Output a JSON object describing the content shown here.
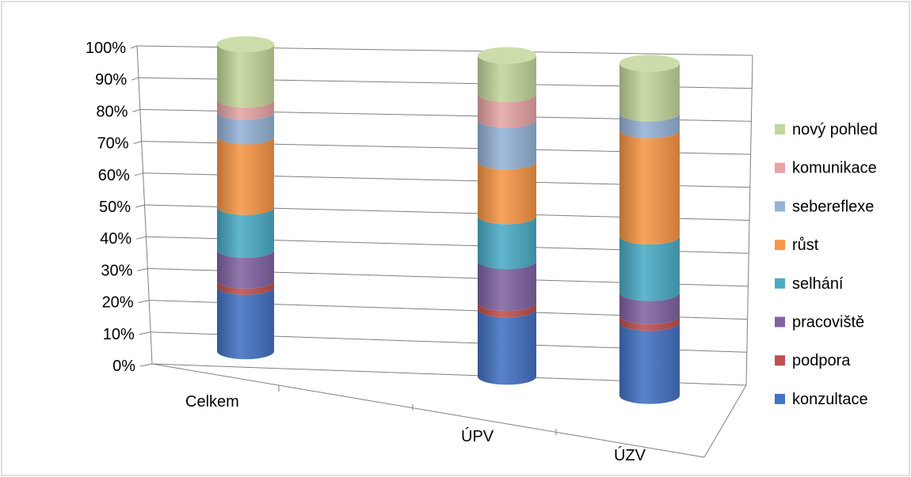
{
  "chart_data": {
    "type": "bar",
    "subtype": "3d-stacked-percent-cylinder",
    "title": "",
    "xlabel": "",
    "ylabel": "",
    "ylim": [
      0,
      100
    ],
    "yticks": [
      "0%",
      "10%",
      "20%",
      "30%",
      "40%",
      "50%",
      "60%",
      "70%",
      "80%",
      "90%",
      "100%"
    ],
    "categories": [
      "Celkem",
      "ÚPV",
      "ÚZV"
    ],
    "series": [
      {
        "name": "konzultace",
        "color": "#4472c4",
        "values": [
          21,
          21,
          22
        ]
      },
      {
        "name": "podpora",
        "color": "#c0504d",
        "values": [
          2,
          2,
          2
        ]
      },
      {
        "name": "pracoviště",
        "color": "#8064a2",
        "values": [
          10,
          13,
          7
        ]
      },
      {
        "name": "selhání",
        "color": "#4bacc6",
        "values": [
          14,
          14,
          17
        ]
      },
      {
        "name": "růst",
        "color": "#f79646",
        "values": [
          23,
          17,
          32
        ]
      },
      {
        "name": "sebereflexe",
        "color": "#95b3d7",
        "values": [
          8,
          13,
          5
        ]
      },
      {
        "name": "komunikace",
        "color": "#e6a5a5",
        "values": [
          4,
          8,
          0
        ]
      },
      {
        "name": "nový pohled",
        "color": "#c3d69b",
        "values": [
          18,
          12,
          15
        ]
      }
    ],
    "grid": true,
    "legend": "right",
    "legend_order": [
      "nový pohled",
      "komunikace",
      "sebereflexe",
      "růst",
      "selhání",
      "pracoviště",
      "podpora",
      "konzultace"
    ]
  }
}
